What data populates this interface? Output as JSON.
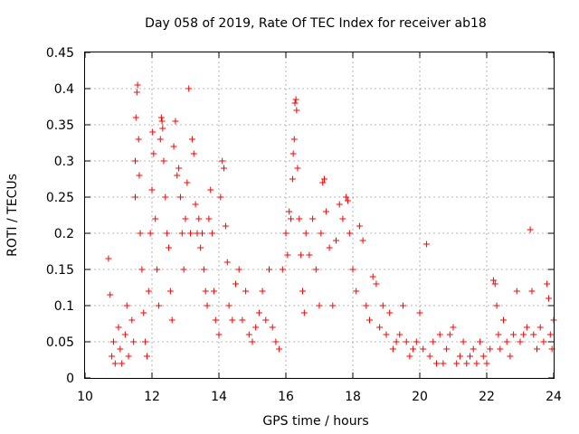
{
  "chart_data": {
    "type": "scatter",
    "title": "Day 058 of 2019, Rate Of TEC Index for receiver ab18",
    "xlabel": "GPS time / hours",
    "ylabel": "ROTI / TECUs",
    "xlim": [
      10,
      24
    ],
    "ylim": [
      0,
      0.45
    ],
    "x_ticks": [
      "10",
      "12",
      "14",
      "16",
      "18",
      "20",
      "22",
      "24"
    ],
    "y_ticks": [
      "0",
      "0.05",
      "0.1",
      "0.15",
      "0.2",
      "0.25",
      "0.3",
      "0.35",
      "0.4",
      "0.45"
    ],
    "grid": true,
    "marker": "+",
    "color": "#ff0000",
    "series": [
      {
        "name": "ROTI",
        "points": [
          [
            10.7,
            0.165
          ],
          [
            10.75,
            0.115
          ],
          [
            10.8,
            0.03
          ],
          [
            10.85,
            0.05
          ],
          [
            10.9,
            0.02
          ],
          [
            11.0,
            0.07
          ],
          [
            11.05,
            0.04
          ],
          [
            11.1,
            0.02
          ],
          [
            11.2,
            0.06
          ],
          [
            11.25,
            0.1
          ],
          [
            11.3,
            0.03
          ],
          [
            11.4,
            0.08
          ],
          [
            11.45,
            0.05
          ],
          [
            11.5,
            0.25
          ],
          [
            11.5,
            0.3
          ],
          [
            11.52,
            0.36
          ],
          [
            11.55,
            0.395
          ],
          [
            11.57,
            0.405
          ],
          [
            11.6,
            0.33
          ],
          [
            11.62,
            0.28
          ],
          [
            11.65,
            0.2
          ],
          [
            11.7,
            0.15
          ],
          [
            11.75,
            0.09
          ],
          [
            11.8,
            0.05
          ],
          [
            11.85,
            0.03
          ],
          [
            11.9,
            0.12
          ],
          [
            11.95,
            0.2
          ],
          [
            12.0,
            0.26
          ],
          [
            12.02,
            0.34
          ],
          [
            12.05,
            0.31
          ],
          [
            12.1,
            0.22
          ],
          [
            12.15,
            0.15
          ],
          [
            12.2,
            0.1
          ],
          [
            12.25,
            0.33
          ],
          [
            12.28,
            0.36
          ],
          [
            12.3,
            0.355
          ],
          [
            12.32,
            0.345
          ],
          [
            12.35,
            0.3
          ],
          [
            12.4,
            0.25
          ],
          [
            12.45,
            0.2
          ],
          [
            12.5,
            0.18
          ],
          [
            12.55,
            0.12
          ],
          [
            12.6,
            0.08
          ],
          [
            12.65,
            0.32
          ],
          [
            12.7,
            0.355
          ],
          [
            12.75,
            0.28
          ],
          [
            12.8,
            0.29
          ],
          [
            12.85,
            0.25
          ],
          [
            12.9,
            0.2
          ],
          [
            12.95,
            0.15
          ],
          [
            13.0,
            0.22
          ],
          [
            13.05,
            0.27
          ],
          [
            13.1,
            0.4
          ],
          [
            13.15,
            0.2
          ],
          [
            13.2,
            0.33
          ],
          [
            13.25,
            0.31
          ],
          [
            13.3,
            0.24
          ],
          [
            13.35,
            0.2
          ],
          [
            13.4,
            0.22
          ],
          [
            13.45,
            0.18
          ],
          [
            13.5,
            0.2
          ],
          [
            13.55,
            0.15
          ],
          [
            13.6,
            0.12
          ],
          [
            13.65,
            0.1
          ],
          [
            13.7,
            0.22
          ],
          [
            13.75,
            0.26
          ],
          [
            13.8,
            0.2
          ],
          [
            13.85,
            0.12
          ],
          [
            13.9,
            0.08
          ],
          [
            14.0,
            0.06
          ],
          [
            14.05,
            0.25
          ],
          [
            14.1,
            0.3
          ],
          [
            14.15,
            0.29
          ],
          [
            14.2,
            0.21
          ],
          [
            14.25,
            0.16
          ],
          [
            14.3,
            0.1
          ],
          [
            14.4,
            0.08
          ],
          [
            14.5,
            0.13
          ],
          [
            14.6,
            0.15
          ],
          [
            14.7,
            0.08
          ],
          [
            14.8,
            0.12
          ],
          [
            14.9,
            0.06
          ],
          [
            15.0,
            0.05
          ],
          [
            15.1,
            0.07
          ],
          [
            15.2,
            0.09
          ],
          [
            15.3,
            0.12
          ],
          [
            15.4,
            0.08
          ],
          [
            15.5,
            0.15
          ],
          [
            15.6,
            0.07
          ],
          [
            15.7,
            0.05
          ],
          [
            15.8,
            0.04
          ],
          [
            15.9,
            0.15
          ],
          [
            16.0,
            0.2
          ],
          [
            16.05,
            0.17
          ],
          [
            16.1,
            0.23
          ],
          [
            16.15,
            0.22
          ],
          [
            16.2,
            0.275
          ],
          [
            16.22,
            0.31
          ],
          [
            16.25,
            0.33
          ],
          [
            16.27,
            0.38
          ],
          [
            16.3,
            0.385
          ],
          [
            16.32,
            0.37
          ],
          [
            16.35,
            0.29
          ],
          [
            16.4,
            0.22
          ],
          [
            16.45,
            0.17
          ],
          [
            16.5,
            0.12
          ],
          [
            16.55,
            0.09
          ],
          [
            16.6,
            0.2
          ],
          [
            16.7,
            0.17
          ],
          [
            16.8,
            0.22
          ],
          [
            16.9,
            0.15
          ],
          [
            17.0,
            0.1
          ],
          [
            17.05,
            0.2
          ],
          [
            17.1,
            0.27
          ],
          [
            17.15,
            0.275
          ],
          [
            17.2,
            0.23
          ],
          [
            17.3,
            0.18
          ],
          [
            17.4,
            0.1
          ],
          [
            17.5,
            0.19
          ],
          [
            17.6,
            0.24
          ],
          [
            17.7,
            0.22
          ],
          [
            17.8,
            0.25
          ],
          [
            17.85,
            0.245
          ],
          [
            17.9,
            0.2
          ],
          [
            18.0,
            0.15
          ],
          [
            18.1,
            0.12
          ],
          [
            18.2,
            0.21
          ],
          [
            18.3,
            0.19
          ],
          [
            18.4,
            0.1
          ],
          [
            18.5,
            0.08
          ],
          [
            18.6,
            0.14
          ],
          [
            18.7,
            0.13
          ],
          [
            18.8,
            0.07
          ],
          [
            18.9,
            0.1
          ],
          [
            19.0,
            0.06
          ],
          [
            19.1,
            0.09
          ],
          [
            19.2,
            0.04
          ],
          [
            19.3,
            0.05
          ],
          [
            19.4,
            0.06
          ],
          [
            19.5,
            0.1
          ],
          [
            19.6,
            0.05
          ],
          [
            19.7,
            0.03
          ],
          [
            19.8,
            0.04
          ],
          [
            19.9,
            0.05
          ],
          [
            20.0,
            0.09
          ],
          [
            20.1,
            0.04
          ],
          [
            20.2,
            0.185
          ],
          [
            20.3,
            0.03
          ],
          [
            20.4,
            0.05
          ],
          [
            20.5,
            0.02
          ],
          [
            20.6,
            0.06
          ],
          [
            20.7,
            0.02
          ],
          [
            20.8,
            0.04
          ],
          [
            20.9,
            0.06
          ],
          [
            21.0,
            0.07
          ],
          [
            21.1,
            0.02
          ],
          [
            21.2,
            0.03
          ],
          [
            21.3,
            0.05
          ],
          [
            21.4,
            0.02
          ],
          [
            21.5,
            0.03
          ],
          [
            21.6,
            0.04
          ],
          [
            21.7,
            0.02
          ],
          [
            21.8,
            0.05
          ],
          [
            21.9,
            0.03
          ],
          [
            22.0,
            0.02
          ],
          [
            22.1,
            0.04
          ],
          [
            22.2,
            0.135
          ],
          [
            22.25,
            0.13
          ],
          [
            22.3,
            0.1
          ],
          [
            22.35,
            0.06
          ],
          [
            22.4,
            0.04
          ],
          [
            22.5,
            0.08
          ],
          [
            22.6,
            0.05
          ],
          [
            22.7,
            0.03
          ],
          [
            22.8,
            0.06
          ],
          [
            22.9,
            0.12
          ],
          [
            23.0,
            0.05
          ],
          [
            23.1,
            0.06
          ],
          [
            23.2,
            0.07
          ],
          [
            23.3,
            0.205
          ],
          [
            23.35,
            0.12
          ],
          [
            23.4,
            0.06
          ],
          [
            23.5,
            0.04
          ],
          [
            23.6,
            0.07
          ],
          [
            23.7,
            0.05
          ],
          [
            23.8,
            0.13
          ],
          [
            23.85,
            0.11
          ],
          [
            23.9,
            0.06
          ],
          [
            23.95,
            0.04
          ],
          [
            24.0,
            0.08
          ]
        ]
      }
    ]
  }
}
